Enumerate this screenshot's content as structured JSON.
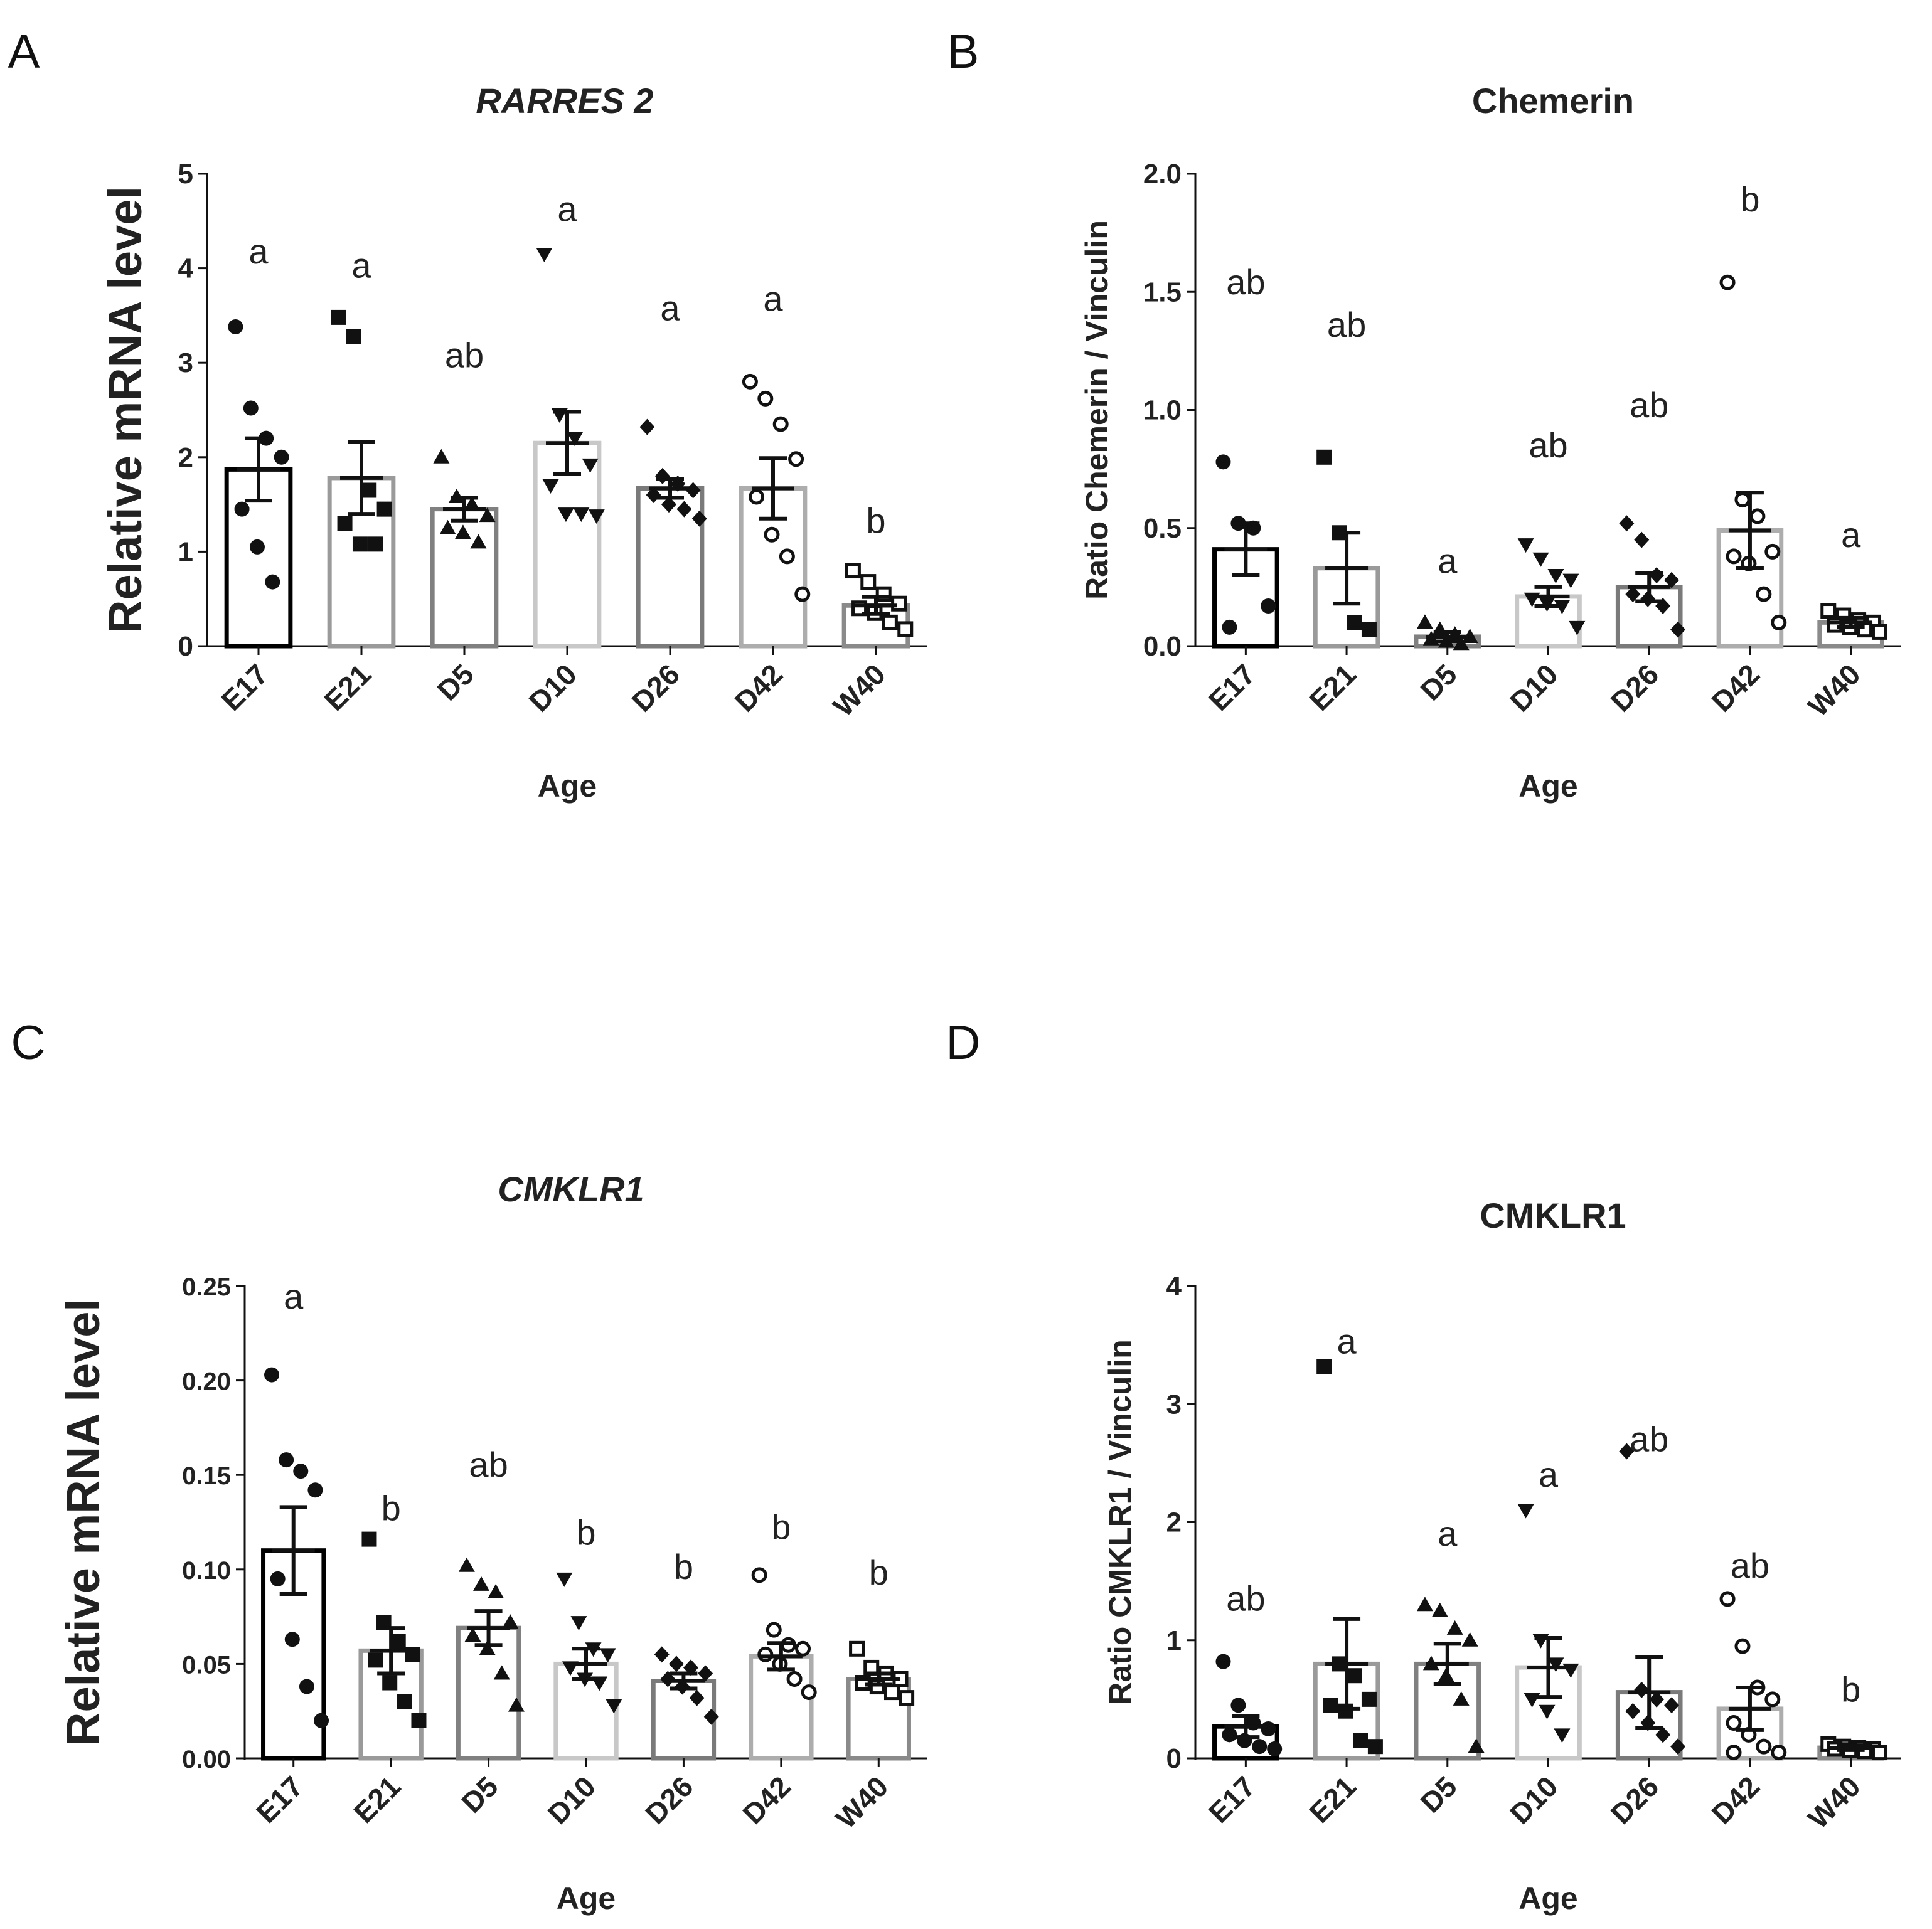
{
  "colors": {
    "text": "#222222",
    "bars": [
      "#000000",
      "#9a9a9a",
      "#808080",
      "#c8c8c8",
      "#7a7a7a",
      "#adadad",
      "#8a8a8a"
    ]
  },
  "chart_data": [
    {
      "panel": "A",
      "type": "bar",
      "title": "RARRES 2",
      "title_italic": true,
      "xlabel": "Age",
      "ylabel": "Relative mRNA level",
      "ylim": [
        0,
        5
      ],
      "yticks": [
        "0",
        "1",
        "2",
        "3",
        "4",
        "5"
      ],
      "categories": [
        "E17",
        "E21",
        "D5",
        "D10",
        "D26",
        "D42",
        "W40"
      ],
      "markers": [
        "circle",
        "square",
        "triangle",
        "triangle-down",
        "diamond",
        "circle-open",
        "square-open"
      ],
      "values": [
        1.87,
        1.78,
        1.45,
        2.15,
        1.67,
        1.67,
        0.43
      ],
      "errors": [
        0.33,
        0.38,
        0.12,
        0.33,
        0.1,
        0.32,
        0.09
      ],
      "letters": [
        "a",
        "a",
        "ab",
        "a",
        "a",
        "a",
        "b"
      ],
      "letter_y": [
        4.05,
        3.9,
        2.95,
        4.5,
        3.45,
        3.55,
        1.2
      ],
      "points": [
        [
          3.38,
          2.52,
          2.2,
          2.0,
          1.45,
          1.05,
          0.68
        ],
        [
          3.48,
          3.28,
          1.65,
          1.45,
          1.3,
          1.08,
          1.08
        ],
        [
          2.0,
          1.58,
          1.5,
          1.38,
          1.25,
          1.2,
          1.1
        ],
        [
          4.15,
          2.45,
          2.2,
          1.92,
          1.7,
          1.4,
          1.4,
          1.38
        ],
        [
          2.32,
          1.8,
          1.72,
          1.65,
          1.6,
          1.5,
          1.45,
          1.35
        ],
        [
          2.8,
          2.62,
          2.35,
          1.98,
          1.58,
          1.18,
          0.95,
          0.55
        ],
        [
          0.8,
          0.68,
          0.55,
          0.45,
          0.4,
          0.35,
          0.25,
          0.18
        ]
      ]
    },
    {
      "panel": "B",
      "type": "bar",
      "title": "Chemerin",
      "title_italic": false,
      "xlabel": "Age",
      "ylabel": "Ratio Chemerin / Vinculin",
      "ylim": [
        0,
        2
      ],
      "yticks": [
        "0.0",
        "0.5",
        "1.0",
        "1.5",
        "2.0"
      ],
      "categories": [
        "E17",
        "E21",
        "D5",
        "D10",
        "D26",
        "D42",
        "W40"
      ],
      "markers": [
        "circle",
        "square",
        "triangle",
        "triangle-down",
        "diamond",
        "circle-open",
        "square-open"
      ],
      "values": [
        0.41,
        0.33,
        0.04,
        0.21,
        0.25,
        0.49,
        0.1
      ],
      "errors": [
        0.11,
        0.15,
        0.02,
        0.04,
        0.06,
        0.16,
        0.02
      ],
      "letters": [
        "ab",
        "ab",
        "a",
        "ab",
        "ab",
        "b",
        "a"
      ],
      "letter_y": [
        1.49,
        1.31,
        0.31,
        0.8,
        0.97,
        1.84,
        0.42
      ],
      "points": [
        [
          0.78,
          0.52,
          0.5,
          0.17,
          0.08
        ],
        [
          0.8,
          0.48,
          0.1,
          0.07
        ],
        [
          0.1,
          0.07,
          0.05,
          0.04,
          0.03,
          0.02,
          0.01
        ],
        [
          0.43,
          0.37,
          0.3,
          0.28,
          0.2,
          0.18,
          0.17,
          0.08
        ],
        [
          0.52,
          0.45,
          0.3,
          0.28,
          0.22,
          0.2,
          0.17,
          0.07
        ],
        [
          1.54,
          0.62,
          0.55,
          0.4,
          0.38,
          0.35,
          0.22,
          0.1
        ],
        [
          0.15,
          0.13,
          0.11,
          0.1,
          0.09,
          0.08,
          0.07,
          0.06
        ]
      ]
    },
    {
      "panel": "C",
      "type": "bar",
      "title": "CMKLR1",
      "title_italic": true,
      "xlabel": "Age",
      "ylabel": "Relative mRNA level",
      "ylim": [
        0,
        0.25
      ],
      "yticks": [
        "0.00",
        "0.05",
        "0.10",
        "0.15",
        "0.20",
        "0.25"
      ],
      "categories": [
        "E17",
        "E21",
        "D5",
        "D10",
        "D26",
        "D42",
        "W40"
      ],
      "markers": [
        "circle",
        "square",
        "triangle",
        "triangle-down",
        "diamond",
        "circle-open",
        "square-open"
      ],
      "values": [
        0.11,
        0.057,
        0.069,
        0.05,
        0.041,
        0.054,
        0.042
      ],
      "errors": [
        0.023,
        0.012,
        0.009,
        0.008,
        0.004,
        0.007,
        0.003
      ],
      "letters": [
        "a",
        "b",
        "ab",
        "b",
        "b",
        "b",
        "b"
      ],
      "letter_y": [
        0.238,
        0.126,
        0.149,
        0.113,
        0.095,
        0.116,
        0.092
      ],
      "points": [
        [
          0.203,
          0.158,
          0.152,
          0.142,
          0.095,
          0.063,
          0.038,
          0.02
        ],
        [
          0.116,
          0.072,
          0.062,
          0.055,
          0.052,
          0.04,
          0.03,
          0.02
        ],
        [
          0.102,
          0.092,
          0.088,
          0.072,
          0.065,
          0.058,
          0.045,
          0.028
        ],
        [
          0.095,
          0.072,
          0.058,
          0.055,
          0.048,
          0.042,
          0.04,
          0.028
        ],
        [
          0.055,
          0.05,
          0.048,
          0.045,
          0.042,
          0.038,
          0.032,
          0.022
        ],
        [
          0.097,
          0.068,
          0.06,
          0.058,
          0.055,
          0.05,
          0.042,
          0.035
        ],
        [
          0.058,
          0.048,
          0.045,
          0.042,
          0.04,
          0.038,
          0.035,
          0.032
        ]
      ]
    },
    {
      "panel": "D",
      "type": "bar",
      "title": "CMKLR1",
      "title_italic": false,
      "xlabel": "Age",
      "ylabel": "Ratio CMKLR1 / Vinculin",
      "ylim": [
        0,
        4
      ],
      "yticks": [
        "0",
        "1",
        "2",
        "3",
        "4"
      ],
      "categories": [
        "E17",
        "E21",
        "D5",
        "D10",
        "D26",
        "D42",
        "W40"
      ],
      "markers": [
        "circle",
        "square",
        "triangle",
        "triangle-down",
        "diamond",
        "circle-open",
        "square-open"
      ],
      "values": [
        0.27,
        0.8,
        0.8,
        0.77,
        0.56,
        0.42,
        0.09
      ],
      "errors": [
        0.09,
        0.38,
        0.17,
        0.25,
        0.3,
        0.18,
        0.02
      ],
      "letters": [
        "ab",
        "a",
        "a",
        "a",
        "ab",
        "ab",
        "b"
      ],
      "letter_y": [
        1.25,
        3.43,
        1.8,
        2.3,
        2.6,
        1.53,
        0.48
      ],
      "points": [
        [
          0.82,
          0.45,
          0.3,
          0.25,
          0.2,
          0.15,
          0.1,
          0.08
        ],
        [
          3.32,
          0.8,
          0.7,
          0.5,
          0.45,
          0.4,
          0.15,
          0.1
        ],
        [
          1.3,
          1.25,
          1.1,
          1.0,
          0.8,
          0.7,
          0.5,
          0.1
        ],
        [
          2.1,
          1.0,
          0.8,
          0.75,
          0.5,
          0.4,
          0.2
        ],
        [
          2.6,
          0.58,
          0.5,
          0.45,
          0.4,
          0.3,
          0.2,
          0.1
        ],
        [
          1.35,
          0.95,
          0.6,
          0.5,
          0.3,
          0.2,
          0.1,
          0.05,
          0.05
        ],
        [
          0.12,
          0.1,
          0.09,
          0.08,
          0.08,
          0.07,
          0.06,
          0.05
        ]
      ]
    }
  ]
}
